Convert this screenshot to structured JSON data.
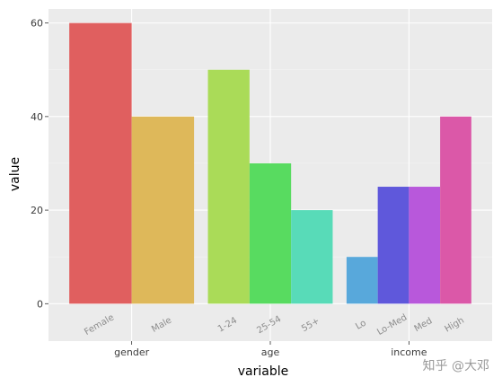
{
  "chart_data": {
    "type": "bar",
    "title": "",
    "xlabel": "variable",
    "ylabel": "value",
    "ylim": [
      -8,
      63
    ],
    "yticks": [
      0,
      20,
      40,
      60
    ],
    "grid": true,
    "legend": "none",
    "groups": [
      {
        "name": "gender",
        "bars": [
          {
            "label": "Female",
            "value": 60,
            "color": "#e05f5f"
          },
          {
            "label": "Male",
            "value": 40,
            "color": "#deb85a"
          }
        ]
      },
      {
        "name": "age",
        "bars": [
          {
            "label": "1-24",
            "value": 50,
            "color": "#aadb58"
          },
          {
            "label": "25-54",
            "value": 30,
            "color": "#58db60"
          },
          {
            "label": "55+",
            "value": 20,
            "color": "#58dbb8"
          }
        ]
      },
      {
        "name": "income",
        "bars": [
          {
            "label": "Lo",
            "value": 10,
            "color": "#58a8db"
          },
          {
            "label": "Lo-Med",
            "value": 25,
            "color": "#5f58db"
          },
          {
            "label": "Med",
            "value": 25,
            "color": "#b858db"
          },
          {
            "label": "High",
            "value": 40,
            "color": "#db58a8"
          }
        ]
      }
    ]
  },
  "colors": {
    "panel_background": "#ebebeb",
    "grid_major": "#ffffff",
    "grid_minor": "#f4f4f4",
    "axis_text": "#3c3c3c",
    "bar_label_text": "#8c8c8c"
  },
  "watermark": "知乎 @大邓"
}
